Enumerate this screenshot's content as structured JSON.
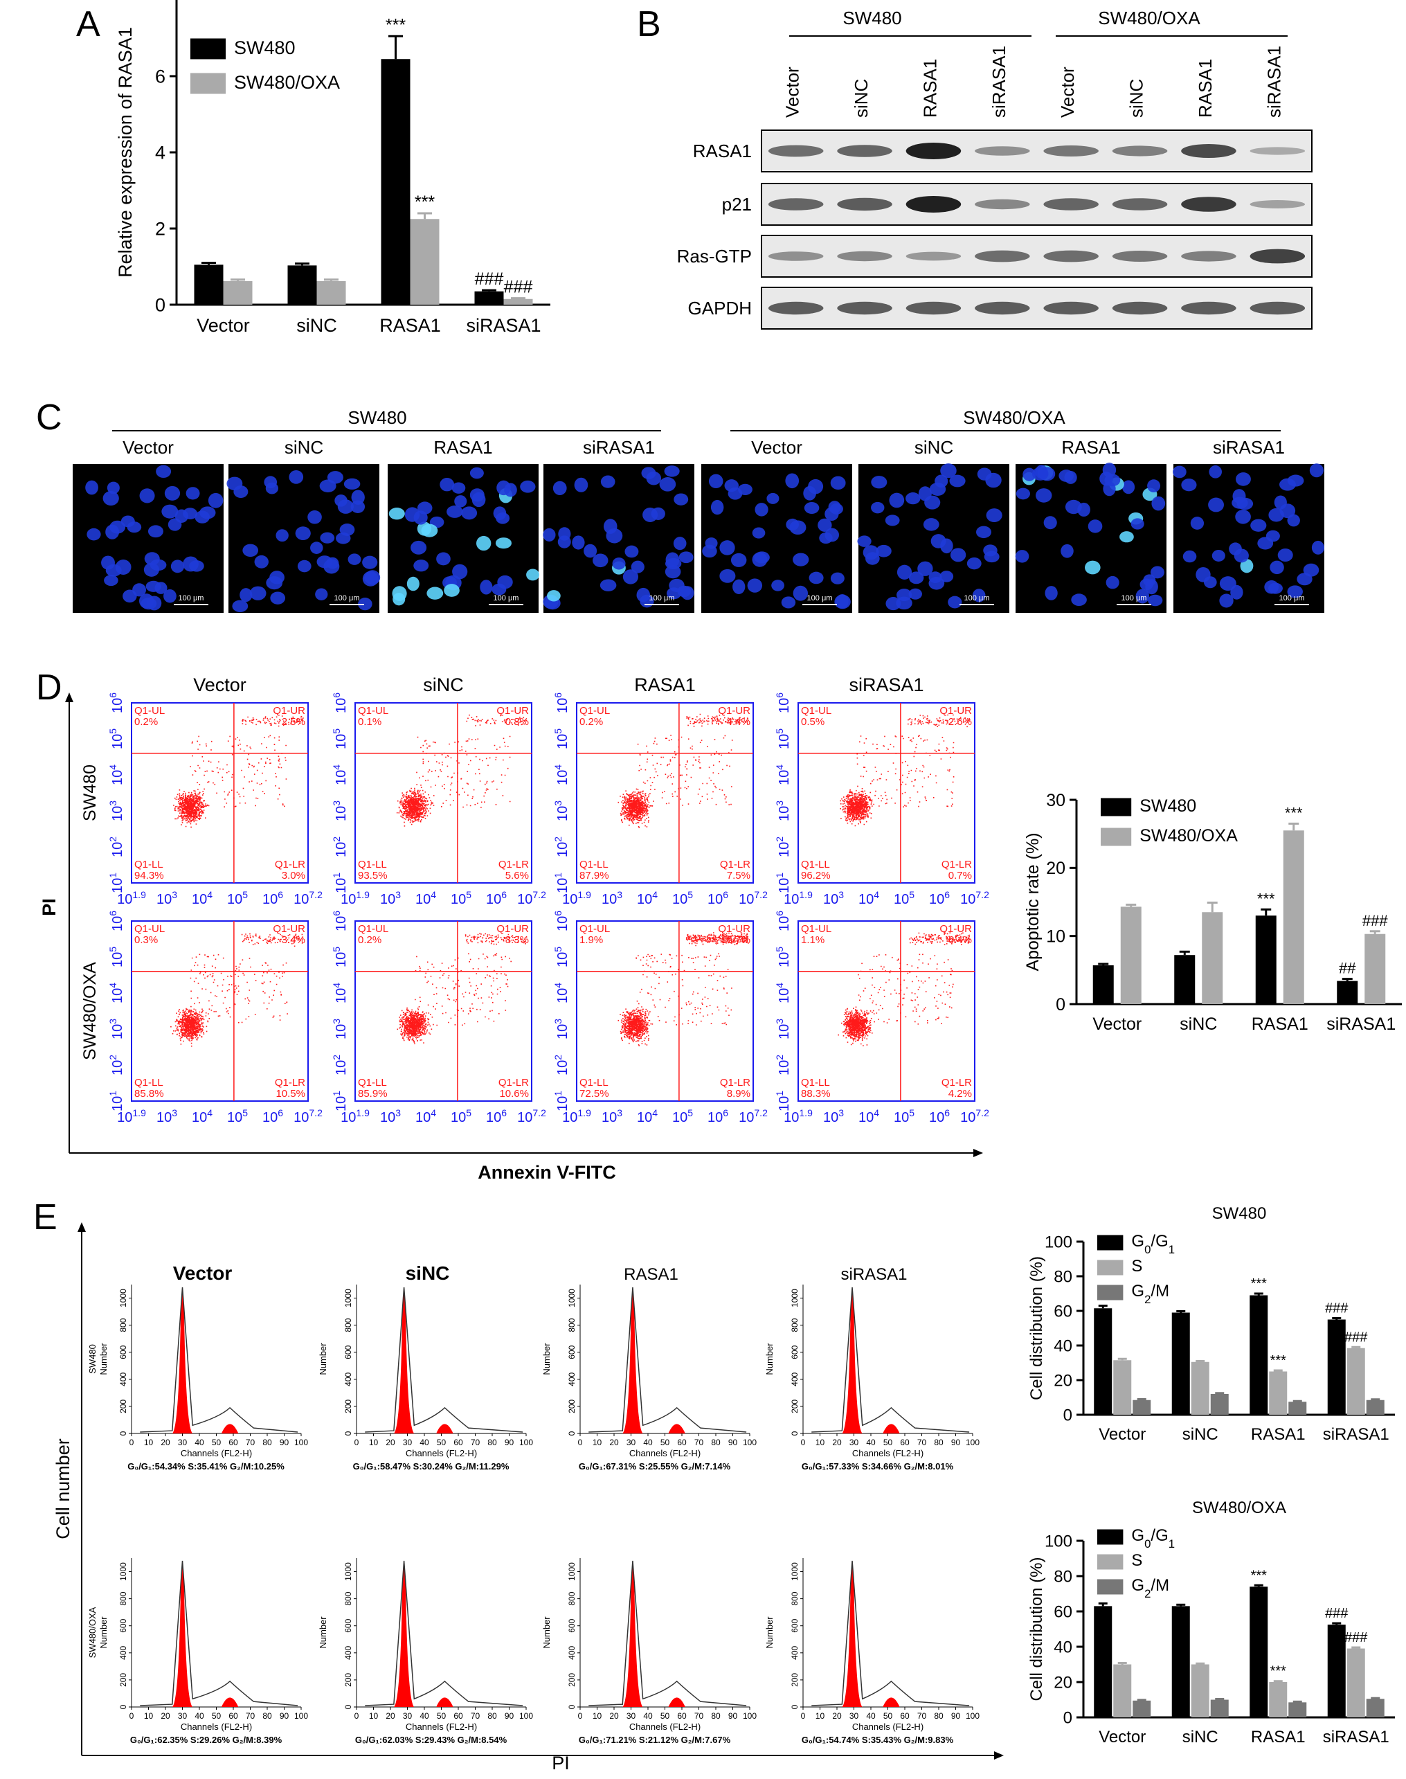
{
  "panel_letters": [
    "A",
    "B",
    "C",
    "D",
    "E"
  ],
  "colors": {
    "black_series": "#000000",
    "gray_series": "#aaaaaa",
    "darkgray_series": "#777777",
    "fluor_bg": "#000000",
    "nucleus": "#1f3bd8",
    "flow_red": "#ff1a1a",
    "flow_axis": "#1a1aee",
    "hist_fill": "#ff0000"
  },
  "chart_data": [
    {
      "id": "A",
      "type": "bar",
      "categories": [
        "Vector",
        "siNC",
        "RASA1",
        "siRASA1"
      ],
      "series": [
        {
          "name": "SW480",
          "values": [
            1.05,
            1.03,
            6.45,
            0.35
          ],
          "errors": [
            0.05,
            0.05,
            0.6,
            0.03
          ]
        },
        {
          "name": "SW480/OXA",
          "values": [
            0.62,
            0.62,
            2.25,
            0.15
          ],
          "errors": [
            0.04,
            0.04,
            0.15,
            0.02
          ]
        }
      ],
      "annotations": [
        [
          "",
          "",
          "***",
          "###"
        ],
        [
          "",
          "",
          "***",
          "###"
        ]
      ],
      "ylabel": "Relative expression of RASA1",
      "ylim": [
        0,
        8
      ],
      "yticks": [
        0,
        2,
        4,
        6
      ],
      "legend": "top-left"
    },
    {
      "id": "D",
      "type": "bar",
      "categories": [
        "Vector",
        "siNC",
        "RASA1",
        "siRASA1"
      ],
      "series": [
        {
          "name": "SW480",
          "values": [
            5.7,
            7.2,
            13.0,
            3.4
          ],
          "errors": [
            0.2,
            0.5,
            0.9,
            0.3
          ]
        },
        {
          "name": "SW480/OXA",
          "values": [
            14.3,
            13.5,
            25.5,
            10.3
          ],
          "errors": [
            0.3,
            1.4,
            1.0,
            0.4
          ]
        }
      ],
      "annotations": [
        [
          "",
          "",
          "***",
          "##"
        ],
        [
          "",
          "",
          "***",
          "###"
        ]
      ],
      "ylabel": "Apoptotic rate (%)",
      "ylim": [
        0,
        30
      ],
      "yticks": [
        0,
        10,
        20,
        30
      ],
      "legend": "top-left"
    },
    {
      "id": "E1",
      "type": "bar",
      "title": "SW480",
      "categories": [
        "Vector",
        "siNC",
        "RASA1",
        "siRASA1"
      ],
      "series": [
        {
          "name": "G0/G1",
          "values": [
            61.5,
            59,
            69,
            55
          ],
          "errors": [
            1.5,
            0.8,
            1.0,
            0.8
          ]
        },
        {
          "name": "S",
          "values": [
            31.5,
            30.5,
            25,
            38.5
          ],
          "errors": [
            0.8,
            0.5,
            0.6,
            0.6
          ]
        },
        {
          "name": "G2/M",
          "values": [
            8.5,
            12,
            7.5,
            8.5
          ],
          "errors": [
            0.5,
            0.5,
            0.4,
            0.4
          ]
        }
      ],
      "annotations": [
        [
          "",
          "",
          "***",
          "###"
        ],
        [
          "",
          "",
          "***",
          "###"
        ],
        [
          "",
          "",
          "",
          ""
        ]
      ],
      "ylabel": "Cell distribution (%)",
      "ylim": [
        0,
        100
      ],
      "yticks": [
        0,
        20,
        40,
        60,
        80,
        100
      ],
      "legend": "top-left"
    },
    {
      "id": "E2",
      "type": "bar",
      "title": "SW480/OXA",
      "categories": [
        "Vector",
        "siNC",
        "RASA1",
        "siRASA1"
      ],
      "series": [
        {
          "name": "G0/G1",
          "values": [
            63,
            63,
            74,
            52.5
          ],
          "errors": [
            1.5,
            0.8,
            0.8,
            0.8
          ]
        },
        {
          "name": "S",
          "values": [
            30,
            30,
            20,
            39
          ],
          "errors": [
            0.8,
            0.5,
            0.5,
            0.6
          ]
        },
        {
          "name": "G2/M",
          "values": [
            9.5,
            10,
            8.5,
            10.5
          ],
          "errors": [
            0.4,
            0.4,
            0.4,
            0.4
          ]
        }
      ],
      "annotations": [
        [
          "",
          "",
          "***",
          "###"
        ],
        [
          "",
          "",
          "***",
          "###"
        ],
        [
          "",
          "",
          "",
          ""
        ]
      ],
      "ylabel": "Cell distribution (%)",
      "ylim": [
        0,
        100
      ],
      "yticks": [
        0,
        20,
        40,
        60,
        80,
        100
      ],
      "legend": "top-left"
    }
  ],
  "legend_e": [
    "G",
    "0",
    "/G",
    "1",
    "S",
    "G",
    "2",
    "/M"
  ],
  "western": {
    "groups": [
      "SW480",
      "SW480/OXA"
    ],
    "lanes": [
      "Vector",
      "siNC",
      "RASA1",
      "siRASA1",
      "Vector",
      "siNC",
      "RASA1",
      "siRASA1"
    ],
    "proteins": [
      "RASA1",
      "p21",
      "Ras-GTP",
      "GAPDH"
    ],
    "intensity": [
      [
        0.55,
        0.6,
        1.0,
        0.35,
        0.5,
        0.45,
        0.75,
        0.2
      ],
      [
        0.6,
        0.65,
        1.0,
        0.4,
        0.6,
        0.6,
        0.85,
        0.25
      ],
      [
        0.35,
        0.4,
        0.3,
        0.55,
        0.55,
        0.5,
        0.45,
        0.8
      ],
      [
        0.65,
        0.65,
        0.65,
        0.65,
        0.65,
        0.65,
        0.65,
        0.65
      ]
    ]
  },
  "fluor": {
    "groups": [
      "SW480",
      "SW480/OXA"
    ],
    "labels": [
      "Vector",
      "siNC",
      "RASA1",
      "siRASA1",
      "Vector",
      "siNC",
      "RASA1",
      "siRASA1"
    ],
    "scale_text": "100 μm",
    "bright": [
      0,
      0,
      1,
      0.3,
      0,
      0,
      1,
      0.1
    ]
  },
  "flow": {
    "cols": [
      "Vector",
      "siNC",
      "RASA1",
      "siRASA1"
    ],
    "rows": [
      "SW480",
      "SW480/OXA"
    ],
    "ylabel": "PI",
    "xlabel": "Annexin V-FITC",
    "xticks": [
      [
        "10",
        "1.9"
      ],
      [
        "10",
        "3"
      ],
      [
        "10",
        "4"
      ],
      [
        "10",
        "5"
      ],
      [
        "10",
        "6"
      ],
      [
        "10",
        "7.2"
      ]
    ],
    "yticks": [
      [
        "10",
        "1"
      ],
      [
        "10",
        "2"
      ],
      [
        "10",
        "3"
      ],
      [
        "10",
        "4"
      ],
      [
        "10",
        "5"
      ],
      [
        "10",
        "6"
      ]
    ],
    "quad_names": [
      "Q1-UL",
      "Q1-UR",
      "Q1-LL",
      "Q1-LR"
    ],
    "quads": [
      [
        [
          "0.2%",
          "2.5%",
          "94.3%",
          "3.0%"
        ],
        [
          "0.1%",
          "0.8%",
          "93.5%",
          "5.6%"
        ],
        [
          "0.2%",
          "4.4%",
          "87.9%",
          "7.5%"
        ],
        [
          "0.5%",
          "2.6%",
          "96.2%",
          "0.7%"
        ]
      ],
      [
        [
          "0.3%",
          "3.4%",
          "85.8%",
          "10.5%"
        ],
        [
          "0.2%",
          "3.3%",
          "85.9%",
          "10.6%"
        ],
        [
          "1.9%",
          "16.7%",
          "72.5%",
          "8.9%"
        ],
        [
          "1.1%",
          "6.4%",
          "88.3%",
          "4.2%"
        ]
      ]
    ]
  },
  "cycle": {
    "cols": [
      "Vector",
      "siNC",
      "RASA1",
      "siRASA1"
    ],
    "ylabel_outer": "Cell number",
    "xlabel_outer": "PI",
    "hist_xlabel": "Channels (FL2-H)",
    "hist_ylabel": [
      "SW480\nNumber",
      "Number",
      "Number",
      "Number",
      "SW480/OXA\nNumber",
      "Number",
      "Number",
      "Number"
    ],
    "xticks": [
      "0",
      "10",
      "20",
      "30",
      "40",
      "50",
      "60",
      "70",
      "80",
      "90",
      "100"
    ],
    "yticks": [
      "0",
      "200",
      "400",
      "600",
      "800",
      "1000"
    ],
    "stats": [
      [
        "G₀/G₁:54.34% S:35.41% G₂/M:10.25%",
        "G₀/G₁:58.47% S:30.24% G₂/M:11.29%",
        "G₀/G₁:67.31% S:25.55% G₂/M:7.14%",
        "G₀/G₁:57.33% S:34.66% G₂/M:8.01%"
      ],
      [
        "G₀/G₁:62.35% S:29.26% G₂/M:8.39%",
        "G₀/G₁:62.03% S:29.43% G₂/M:8.54%",
        "G₀/G₁:71.21% S:21.12% G₂/M:7.67%",
        "G₀/G₁:54.74% S:35.43% G₂/M:9.83%"
      ]
    ]
  }
}
